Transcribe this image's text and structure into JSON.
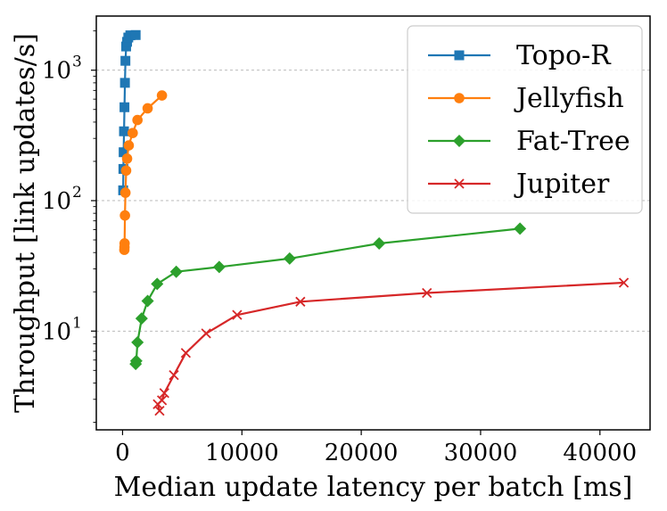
{
  "chart_data": {
    "type": "line",
    "xlabel": "Median update latency per batch [ms]",
    "ylabel": "Throughput [link updates/s]",
    "xscale": "linear",
    "yscale": "log",
    "xlim": [
      -2200,
      44200
    ],
    "ylim": [
      1.75,
      2600
    ],
    "xticks": [
      0,
      10000,
      20000,
      30000,
      40000
    ],
    "xtick_labels": [
      "0",
      "10000",
      "20000",
      "30000",
      "40000"
    ],
    "yticks": [
      10,
      100,
      1000
    ],
    "ytick_labels": [
      {
        "base": "10",
        "exp": "1"
      },
      {
        "base": "10",
        "exp": "2"
      },
      {
        "base": "10",
        "exp": "3"
      }
    ],
    "grid": "y-major-dashed",
    "legend_position": "top-right",
    "series": [
      {
        "name": "Topo-R",
        "color": "#1f77b4",
        "marker": "square",
        "x": [
          50,
          70,
          90,
          120,
          160,
          200,
          240,
          300,
          380,
          480,
          650,
          1100
        ],
        "y": [
          120,
          175,
          235,
          340,
          520,
          800,
          1180,
          1520,
          1650,
          1780,
          1850,
          1860
        ]
      },
      {
        "name": "Jellyfish",
        "color": "#ff7f0e",
        "marker": "circle",
        "x": [
          150,
          160,
          170,
          200,
          240,
          300,
          380,
          520,
          850,
          1250,
          2100,
          3300
        ],
        "y": [
          42,
          44,
          47,
          77,
          115,
          170,
          210,
          265,
          330,
          415,
          510,
          640
        ]
      },
      {
        "name": "Fat-Tree",
        "color": "#2ca02c",
        "marker": "diamond",
        "x": [
          1100,
          1150,
          1250,
          1600,
          2100,
          2900,
          4500,
          8100,
          14000,
          21500,
          33300
        ],
        "y": [
          5.6,
          5.9,
          8.2,
          12.5,
          17,
          23,
          28.5,
          31,
          36,
          47,
          61
        ]
      },
      {
        "name": "Jupiter",
        "color": "#d62728",
        "marker": "x",
        "x": [
          3100,
          2950,
          3300,
          3500,
          4300,
          5300,
          7000,
          9600,
          14900,
          25500,
          42000
        ],
        "y": [
          2.45,
          2.75,
          2.95,
          3.35,
          4.6,
          6.8,
          9.6,
          13.3,
          16.8,
          19.6,
          23.5
        ]
      }
    ]
  }
}
